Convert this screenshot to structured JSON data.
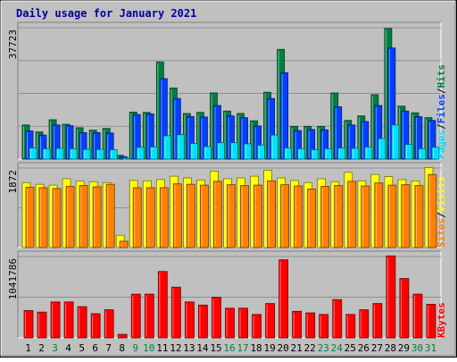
{
  "title": "Daily usage for January 2021",
  "days": [
    "1",
    "2",
    "3",
    "4",
    "5",
    "6",
    "7",
    "8",
    "9",
    "10",
    "11",
    "12",
    "13",
    "14",
    "15",
    "16",
    "17",
    "18",
    "19",
    "20",
    "21",
    "22",
    "23",
    "24",
    "25",
    "26",
    "27",
    "28",
    "29",
    "30",
    "31"
  ],
  "weekend_days": [
    3,
    9,
    10,
    16,
    17,
    23,
    24,
    30,
    31
  ],
  "colors": {
    "background": "#c0c0c0",
    "title": "#0000a0",
    "hits": "#008040",
    "files": "#0040ff",
    "pages": "#00e0ff",
    "visits": "#ffff00",
    "sites": "#ff8000",
    "kbytes": "#ff0000",
    "weekend_label": "#008040",
    "weekday_label": "#000000"
  },
  "chart_data": [
    {
      "type": "bar",
      "name": "hits-files-pages",
      "max_label": "37723",
      "legend": [
        "Pages",
        "/",
        "Files",
        "/",
        "Hits"
      ],
      "ylim": [
        0,
        37723
      ],
      "series": [
        {
          "name": "Hits",
          "values": [
            9800,
            7800,
            11300,
            10000,
            9000,
            8300,
            8800,
            1100,
            13500,
            13400,
            27900,
            20400,
            13100,
            13400,
            19000,
            13800,
            13100,
            11000,
            19200,
            31500,
            9400,
            9400,
            9400,
            19000,
            11100,
            12400,
            18500,
            37500,
            15200,
            13300,
            11900
          ]
        },
        {
          "name": "Files",
          "values": [
            8100,
            6900,
            9800,
            9600,
            7600,
            7600,
            7500,
            700,
            12800,
            13000,
            23100,
            17400,
            12200,
            12100,
            15400,
            12400,
            11900,
            9500,
            17400,
            24800,
            8200,
            8500,
            8400,
            15000,
            9800,
            10800,
            15400,
            31900,
            13800,
            12200,
            11100
          ]
        },
        {
          "name": "Pages",
          "values": [
            3200,
            3000,
            3100,
            3000,
            2800,
            2800,
            2700,
            200,
            3400,
            3500,
            6700,
            7000,
            4500,
            3600,
            4700,
            4700,
            4400,
            4000,
            6900,
            3200,
            3000,
            2700,
            3000,
            3200,
            3100,
            3500,
            5900,
            9800,
            4200,
            3000,
            3400
          ]
        }
      ]
    },
    {
      "type": "bar",
      "name": "visits-sites",
      "max_label": "1872",
      "legend": [
        "Sites",
        "/",
        "Visits"
      ],
      "ylim": [
        0,
        1872
      ],
      "series": [
        {
          "name": "Visits",
          "values": [
            1530,
            1490,
            1470,
            1620,
            1570,
            1550,
            1530,
            290,
            1580,
            1570,
            1600,
            1680,
            1640,
            1590,
            1800,
            1620,
            1640,
            1680,
            1820,
            1640,
            1580,
            1530,
            1620,
            1550,
            1770,
            1570,
            1720,
            1670,
            1600,
            1570,
            1880
          ]
        },
        {
          "name": "Sites",
          "values": [
            1420,
            1410,
            1390,
            1440,
            1460,
            1430,
            1490,
            150,
            1410,
            1410,
            1410,
            1500,
            1490,
            1470,
            1560,
            1480,
            1460,
            1470,
            1570,
            1480,
            1450,
            1380,
            1440,
            1460,
            1560,
            1450,
            1520,
            1470,
            1480,
            1460,
            1720
          ]
        }
      ]
    },
    {
      "type": "bar",
      "name": "kbytes",
      "max_label": "1041786",
      "legend": [
        "KBytes"
      ],
      "ylim": [
        0,
        1041786
      ],
      "series": [
        {
          "name": "KBytes",
          "values": [
            350000,
            330000,
            460000,
            460000,
            400000,
            310000,
            360000,
            45000,
            560000,
            560000,
            850000,
            650000,
            460000,
            420000,
            520000,
            380000,
            380000,
            300000,
            440000,
            1000000,
            340000,
            320000,
            300000,
            490000,
            300000,
            360000,
            440000,
            1050000,
            760000,
            560000,
            430000
          ]
        }
      ]
    }
  ]
}
